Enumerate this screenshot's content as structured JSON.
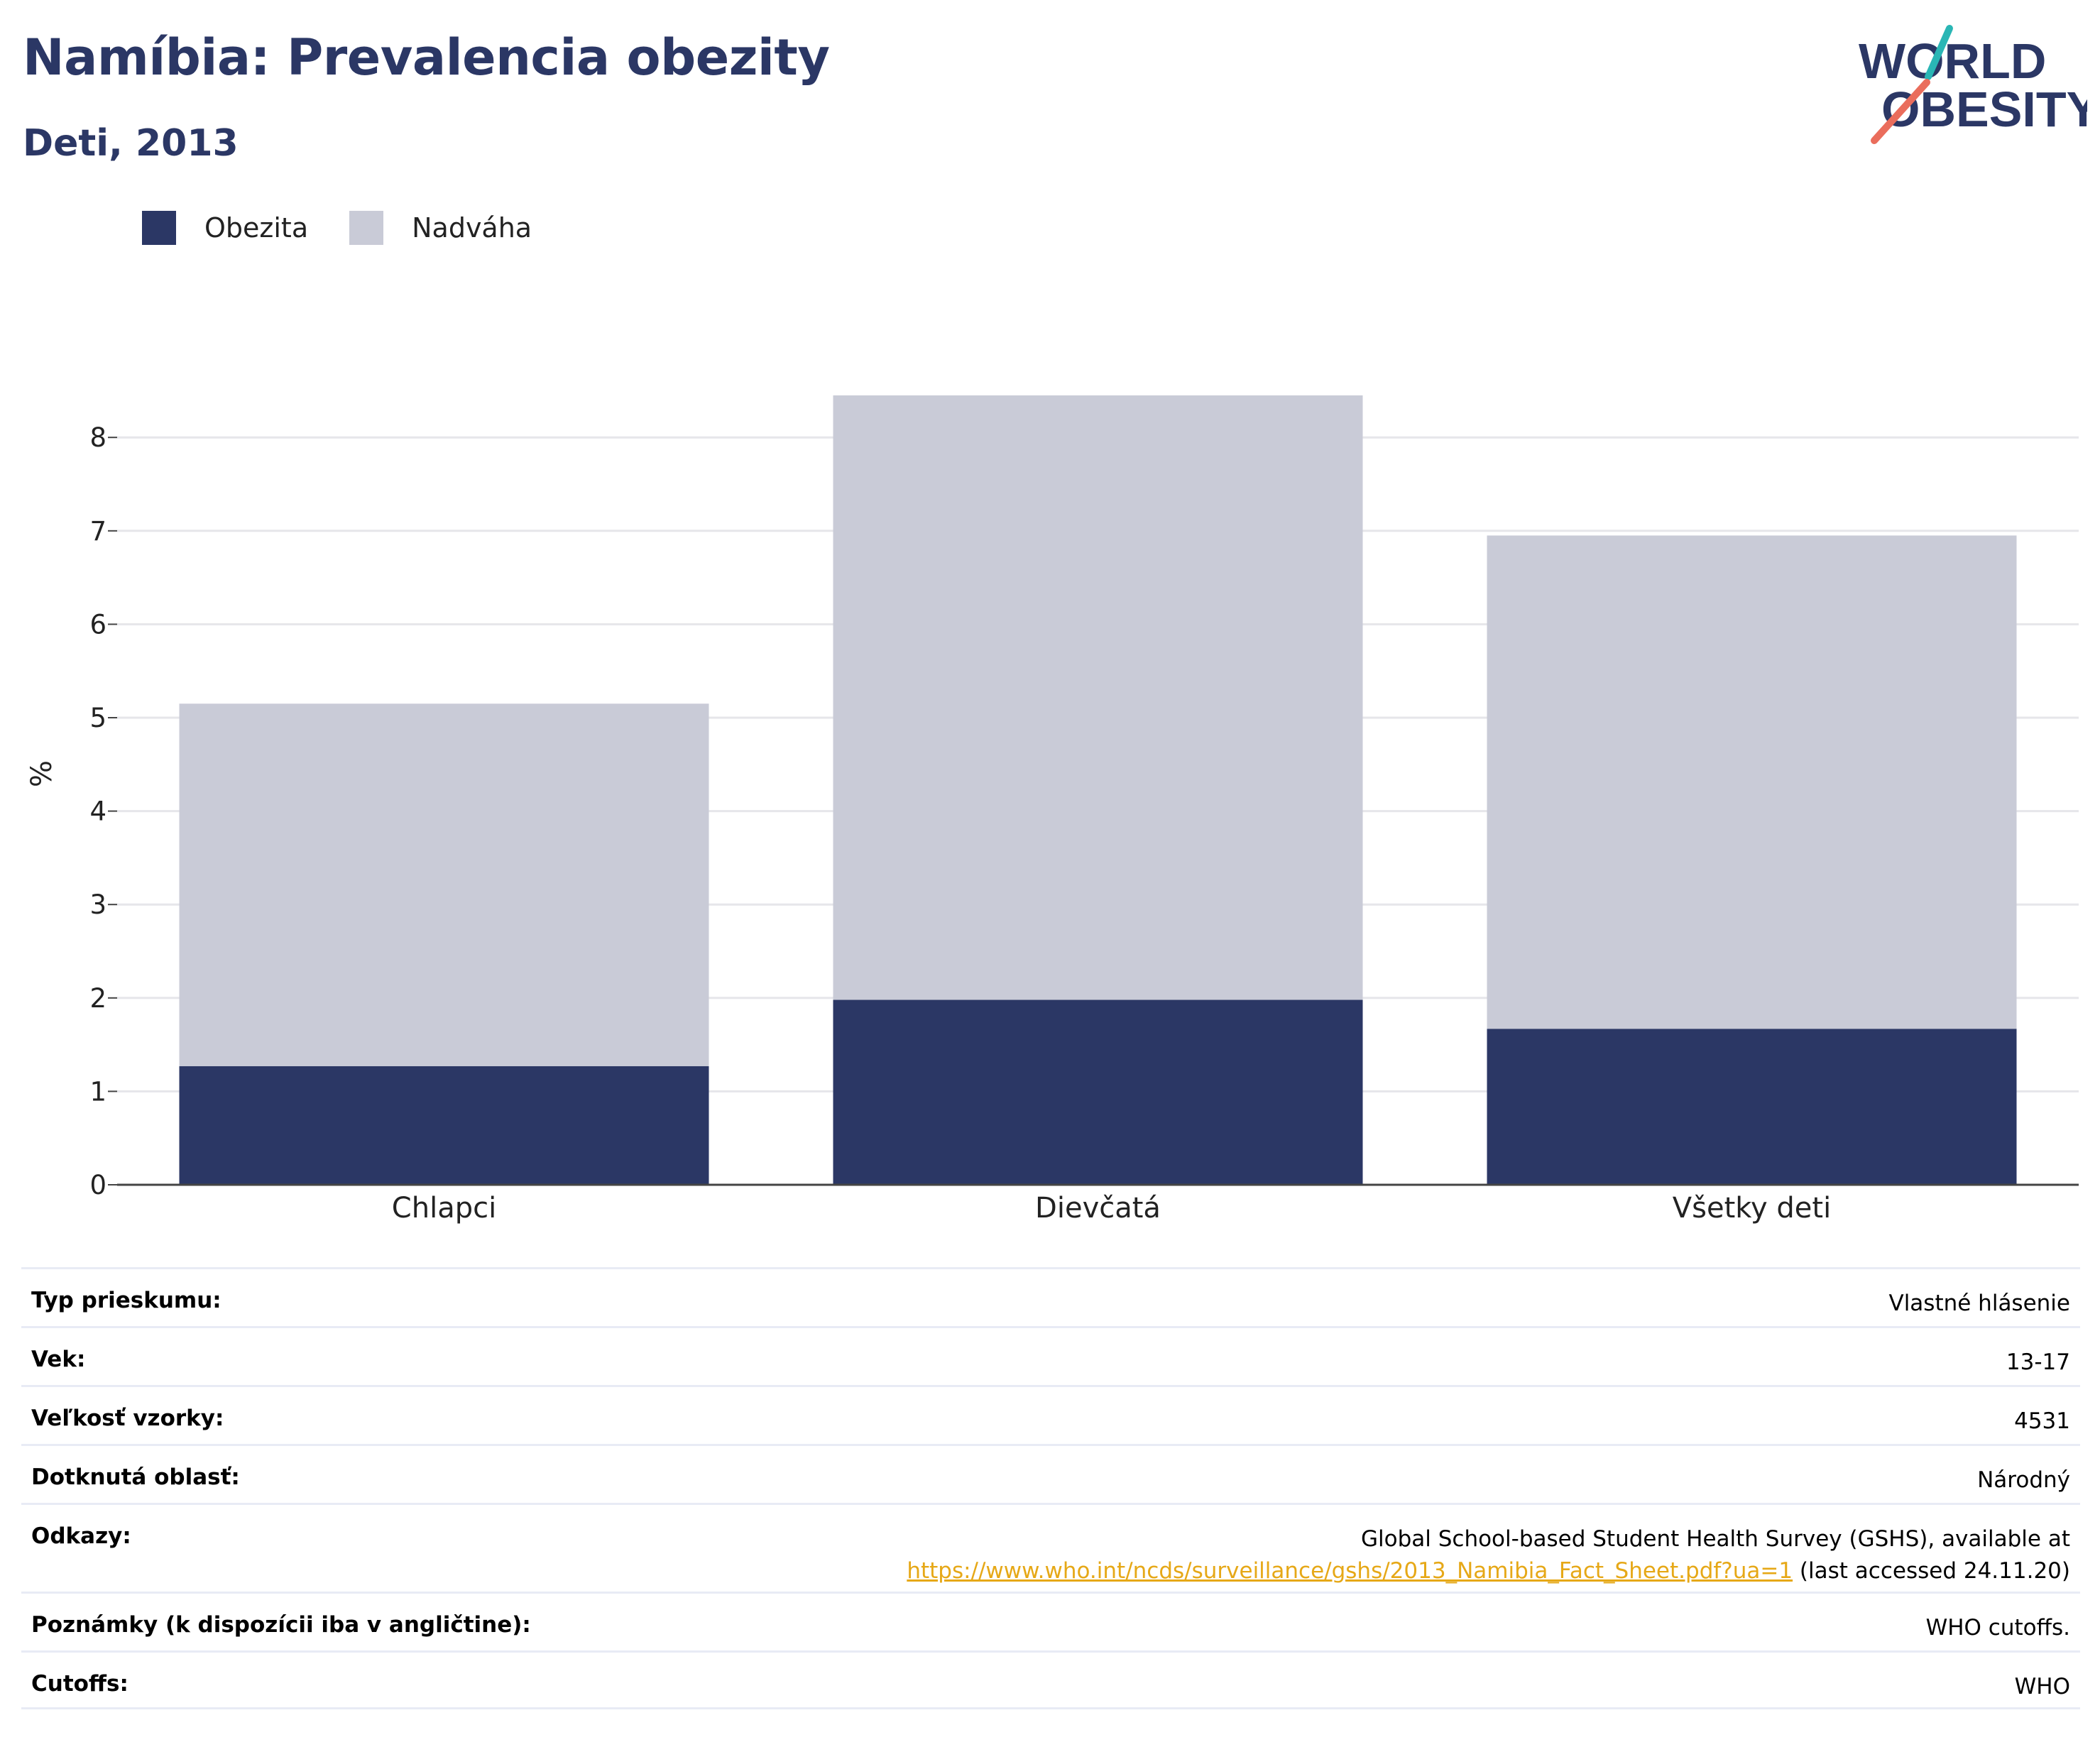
{
  "header": {
    "title": "Namíbia: Prevalencia obezity",
    "subtitle": "Deti, 2013"
  },
  "logo": {
    "line1": "WORLD",
    "line2": "OBESITY",
    "icon": "world-obesity-logo"
  },
  "chart_data": {
    "type": "bar",
    "stacked": true,
    "categories": [
      "Chlapci",
      "Dievčatá",
      "Všetky deti"
    ],
    "series": [
      {
        "name": "Obezita",
        "color": "#2b3765",
        "values": [
          1.27,
          1.98,
          1.67
        ]
      },
      {
        "name": "Nadváha",
        "color": "#c9cbd7",
        "values": [
          3.88,
          6.47,
          5.28
        ]
      }
    ],
    "totals": [
      5.15,
      8.45,
      6.95
    ],
    "ylabel": "%",
    "ylim": [
      0,
      9
    ],
    "yticks": [
      "0",
      "1",
      "2",
      "3",
      "4",
      "5",
      "6",
      "7",
      "8"
    ],
    "grid": true,
    "legend_position": "top-left"
  },
  "info": [
    {
      "label": "Typ prieskumu:",
      "value": "Vlastné hlásenie"
    },
    {
      "label": "Vek:",
      "value": "13-17"
    },
    {
      "label": "Veľkosť vzorky:",
      "value": "4531"
    },
    {
      "label": "Dotknutá oblasť:",
      "value": "Národný"
    },
    {
      "label": "Odkazy:",
      "value_line1": "Global School-based Student Health Survey (GSHS), available at",
      "link": "https://www.who.int/ncds/surveillance/gshs/2013_Namibia_Fact_Sheet.pdf?ua=1",
      "value_after_link": " (last accessed 24.11.20)"
    },
    {
      "label": "Poznámky (k dispozícii iba v angličtine):",
      "value": "WHO cutoffs."
    },
    {
      "label": "Cutoffs:",
      "value": "WHO"
    }
  ]
}
